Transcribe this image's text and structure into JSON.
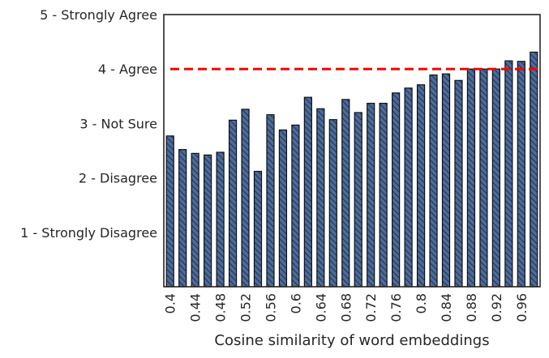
{
  "chart_data": {
    "type": "bar",
    "title": "",
    "xlabel": "Cosine similarity of word embeddings",
    "ylabel": "",
    "ylim": [
      0,
      5
    ],
    "x_tick_labels": [
      "0.4",
      "0.44",
      "0.48",
      "0.52",
      "0.56",
      "0.6",
      "0.64",
      "0.68",
      "0.72",
      "0.76",
      "0.8",
      "0.84",
      "0.88",
      "0.92",
      "0.96"
    ],
    "y_ticks": [
      {
        "value": 1,
        "label": "1 - Strongly Disagree"
      },
      {
        "value": 2,
        "label": "2 - Disagree"
      },
      {
        "value": 3,
        "label": "3 - Not Sure"
      },
      {
        "value": 4,
        "label": "4 - Agree"
      },
      {
        "value": 5,
        "label": "5 - Strongly Agree"
      }
    ],
    "categories": [
      0.4,
      0.42,
      0.44,
      0.46,
      0.48,
      0.5,
      0.52,
      0.54,
      0.56,
      0.58,
      0.6,
      0.62,
      0.64,
      0.66,
      0.68,
      0.7,
      0.72,
      0.74,
      0.76,
      0.78,
      0.8,
      0.82,
      0.84,
      0.86,
      0.88,
      0.9,
      0.92,
      0.94,
      0.96,
      0.98
    ],
    "values": [
      2.77,
      2.52,
      2.45,
      2.42,
      2.47,
      3.06,
      3.26,
      2.12,
      3.16,
      2.88,
      2.97,
      3.48,
      3.27,
      3.07,
      3.44,
      3.2,
      3.37,
      3.37,
      3.56,
      3.65,
      3.71,
      3.89,
      3.91,
      3.79,
      4.0,
      4.0,
      4.0,
      4.15,
      4.14,
      4.31
    ],
    "reference_line": {
      "value": 4.0,
      "color": "#ff0000",
      "style": "dashed"
    },
    "bar_color": "#4a6b9c",
    "hatch": "diagonal",
    "grid": false,
    "legend": "none"
  }
}
